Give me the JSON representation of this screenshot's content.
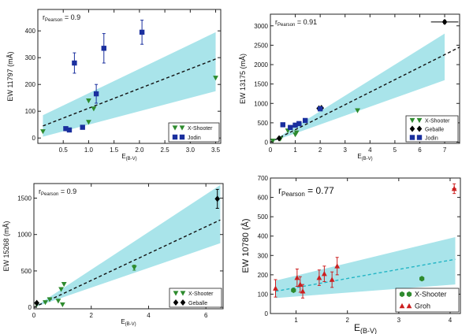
{
  "chart_data": [
    {
      "type": "scatter",
      "panel": "top-left",
      "ylabel": "EW 11797 (mÅ)",
      "xlabel": "E(B-V)",
      "xlim": [
        0,
        3.6
      ],
      "ylim": [
        -20,
        480
      ],
      "xticks": [
        "0.5",
        "1.0",
        "1.5",
        "2.0",
        "2.5",
        "3.0",
        "3.5"
      ],
      "xtick_values": [
        0.5,
        1.0,
        1.5,
        2.0,
        2.5,
        3.0,
        3.5
      ],
      "yticks": [
        "0",
        "100",
        "200",
        "300",
        "400"
      ],
      "ytick_values": [
        0,
        100,
        200,
        300,
        400
      ],
      "annotation": "r_Pearson = 0.9",
      "fit_line": {
        "x": [
          0.1,
          3.5
        ],
        "y": [
          45,
          295
        ]
      },
      "band": {
        "x": [
          0.1,
          3.5
        ],
        "lower": [
          5,
          175
        ],
        "upper": [
          85,
          395
        ]
      },
      "series": [
        {
          "name": "X-Shooter",
          "marker": "triangle-down",
          "color": "#2e8b2e",
          "x": [
            0.1,
            0.55,
            1.0,
            1.0,
            1.1,
            3.5
          ],
          "y": [
            25,
            35,
            60,
            140,
            110,
            225
          ],
          "yerr": [
            0,
            0,
            0,
            0,
            0,
            0
          ],
          "xerr": [
            0,
            0,
            0,
            0,
            0,
            0
          ]
        },
        {
          "name": "Jodin",
          "marker": "square",
          "color": "#1a2f9e",
          "x": [
            0.55,
            0.62,
            0.72,
            0.88,
            1.15,
            1.3,
            2.05
          ],
          "y": [
            35,
            30,
            280,
            40,
            165,
            335,
            395
          ],
          "yerr": [
            0,
            0,
            38,
            0,
            35,
            55,
            45
          ],
          "xerr": [
            0,
            0,
            0,
            0,
            0,
            0,
            0
          ]
        }
      ],
      "legend": {
        "position": "bottom-right",
        "entries": [
          "X-Shooter",
          "Jodin"
        ]
      }
    },
    {
      "type": "scatter",
      "panel": "top-right",
      "ylabel": "EW 13175 (mÅ)",
      "xlabel": "E(B-V)",
      "xlim": [
        0,
        7.6
      ],
      "ylim": [
        -30,
        3300
      ],
      "xticks": [
        "0",
        "1",
        "2",
        "3",
        "4",
        "5",
        "6",
        "7"
      ],
      "xtick_values": [
        0,
        1,
        2,
        3,
        4,
        5,
        6,
        7
      ],
      "yticks": [
        "0",
        "500",
        "1000",
        "1500",
        "2000",
        "2500",
        "3000"
      ],
      "ytick_values": [
        0,
        500,
        1000,
        1500,
        2000,
        2500,
        3000
      ],
      "annotation": "r_Pearson = 0.91",
      "fit_line": {
        "x": [
          0,
          7.6
        ],
        "y": [
          0,
          2450
        ]
      },
      "band": {
        "x": [
          0,
          7.0
        ],
        "lower": [
          0,
          1600
        ],
        "upper": [
          0,
          2800
        ]
      },
      "series": [
        {
          "name": "X-Shooter",
          "marker": "triangle-down",
          "color": "#2e8b2e",
          "x": [
            0.1,
            0.4,
            0.7,
            1.0,
            1.05,
            3.5
          ],
          "y": [
            40,
            90,
            300,
            200,
            250,
            820
          ],
          "yerr": [
            0,
            0,
            0,
            0,
            0,
            0
          ],
          "xerr": [
            0,
            0,
            0,
            0,
            0,
            0
          ]
        },
        {
          "name": "Geballe",
          "marker": "diamond",
          "color": "#000000",
          "x": [
            0.35,
            1.95,
            2.05,
            7.0
          ],
          "y": [
            100,
            870,
            880,
            3100
          ],
          "yerr": [
            0,
            0,
            0,
            40
          ],
          "xerr": [
            0,
            0,
            0,
            0.55
          ]
        },
        {
          "name": "Jodin",
          "marker": "square",
          "color": "#1a2f9e",
          "x": [
            0.5,
            0.8,
            1.0,
            1.15,
            1.4,
            2.0
          ],
          "y": [
            450,
            380,
            440,
            480,
            560,
            860
          ],
          "yerr": [
            0,
            0,
            0,
            0,
            0,
            0
          ],
          "xerr": [
            0,
            0,
            0,
            0,
            0,
            0
          ]
        }
      ],
      "legend": {
        "position": "bottom-right",
        "entries": [
          "X-Shooter",
          "Geballe",
          "Jodin"
        ]
      }
    },
    {
      "type": "scatter",
      "panel": "bottom-left",
      "ylabel": "EW 15268 (mÅ)",
      "xlabel": "E(B-V)",
      "xlim": [
        0,
        6.6
      ],
      "ylim": [
        -20,
        1700
      ],
      "xticks": [
        "0",
        "2",
        "4",
        "6"
      ],
      "xtick_values": [
        0,
        2,
        4,
        6
      ],
      "yticks": [
        "0",
        "500",
        "1000",
        "1500"
      ],
      "ytick_values": [
        0,
        500,
        1000,
        1500
      ],
      "annotation": "r_Pearson = 0.9",
      "fit_line": {
        "x": [
          0,
          6.5
        ],
        "y": [
          0,
          1200
        ]
      },
      "band": {
        "x": [
          0,
          6.5
        ],
        "lower": [
          0,
          880
        ],
        "upper": [
          0,
          1680
        ]
      },
      "series": [
        {
          "name": "X-Shooter",
          "marker": "triangle-down",
          "color": "#2e8b2e",
          "x": [
            0.1,
            0.4,
            0.55,
            0.85,
            0.95,
            1.0,
            1.05,
            3.5
          ],
          "y": [
            40,
            70,
            110,
            90,
            250,
            40,
            320,
            545
          ],
          "yerr": [
            0,
            0,
            0,
            0,
            0,
            0,
            0,
            35
          ],
          "xerr": [
            0,
            0,
            0,
            0,
            0,
            0,
            0,
            0
          ]
        },
        {
          "name": "Geballe",
          "marker": "diamond",
          "color": "#000000",
          "x": [
            0.1,
            6.4
          ],
          "y": [
            60,
            1490
          ],
          "yerr": [
            0,
            130
          ],
          "xerr": [
            0,
            0
          ]
        }
      ],
      "legend": {
        "position": "bottom-right",
        "entries": [
          "X-Shooter",
          "Geballe"
        ]
      }
    },
    {
      "type": "scatter",
      "panel": "bottom-right",
      "ylabel": "EW 10780 (Å)",
      "xlabel": "E(B-V)",
      "xlim": [
        0.5,
        4.2
      ],
      "ylim": [
        0,
        700
      ],
      "xticks": [
        "1",
        "2",
        "3",
        "4"
      ],
      "xtick_values": [
        1,
        2,
        3,
        4
      ],
      "yticks": [
        "0",
        "100",
        "200",
        "300",
        "400",
        "500",
        "600",
        "700"
      ],
      "ytick_values": [
        0,
        100,
        200,
        300,
        400,
        500,
        600,
        700
      ],
      "annotation": "r_Pearson = 0.77",
      "fit_line": {
        "x": [
          0.6,
          4.1
        ],
        "y": [
          115,
          280
        ]
      },
      "band": {
        "x": [
          0.6,
          4.1
        ],
        "lower": [
          80,
          150
        ],
        "upper": [
          170,
          395
        ]
      },
      "series": [
        {
          "name": "X-Shooter",
          "marker": "hexagon",
          "color": "#2e8b2e",
          "x": [
            0.95,
            3.45
          ],
          "y": [
            120,
            180
          ],
          "yerr": [
            0,
            0
          ],
          "xerr": [
            0,
            0
          ]
        },
        {
          "name": "Groh",
          "marker": "triangle-up",
          "color": "#cc1f1f",
          "x": [
            0.6,
            1.02,
            1.08,
            1.13,
            1.45,
            1.55,
            1.7,
            1.8,
            4.08
          ],
          "y": [
            130,
            185,
            150,
            115,
            185,
            205,
            175,
            245,
            645
          ],
          "yerr": [
            45,
            45,
            40,
            35,
            40,
            40,
            40,
            45,
            25
          ],
          "xerr": [
            0,
            0,
            0,
            0,
            0,
            0,
            0,
            0,
            0.04
          ]
        }
      ],
      "legend": {
        "position": "bottom-right",
        "entries": [
          "X-Shooter",
          "Groh"
        ]
      }
    }
  ]
}
